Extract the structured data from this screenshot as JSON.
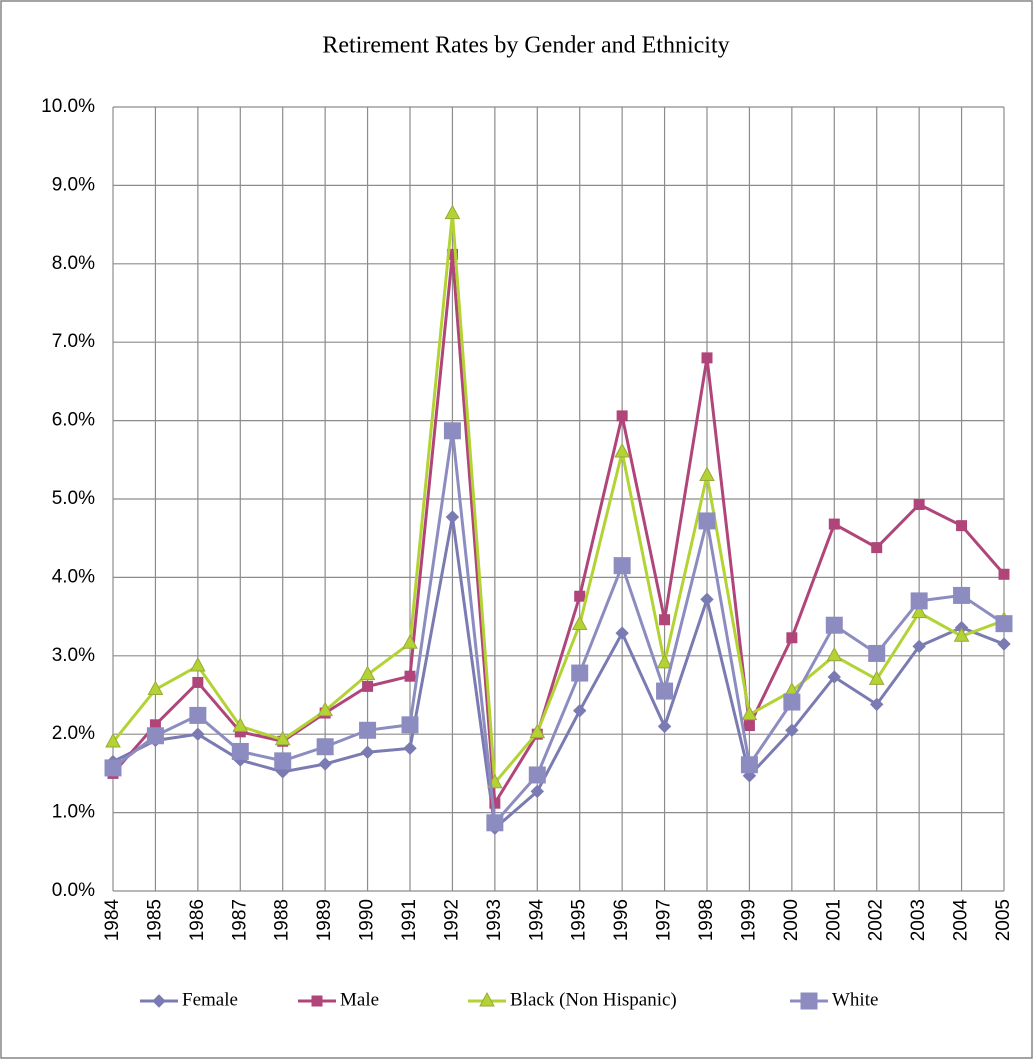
{
  "chart_data": {
    "type": "line",
    "title": "Retirement Rates by Gender and Ethnicity",
    "categories": [
      "1984",
      "1985",
      "1986",
      "1987",
      "1988",
      "1989",
      "1990",
      "1991",
      "1992",
      "1993",
      "1994",
      "1995",
      "1996",
      "1997",
      "1998",
      "1999",
      "2000",
      "2001",
      "2002",
      "2003",
      "2004",
      "2005"
    ],
    "ylim": [
      0,
      10
    ],
    "yticks": [
      {
        "value": 0,
        "label": "0.0%"
      },
      {
        "value": 1,
        "label": "1.0%"
      },
      {
        "value": 2,
        "label": "2.0%"
      },
      {
        "value": 3,
        "label": "3.0%"
      },
      {
        "value": 4,
        "label": "4.0%"
      },
      {
        "value": 5,
        "label": "5.0%"
      },
      {
        "value": 6,
        "label": "6.0%"
      },
      {
        "value": 7,
        "label": "7.0%"
      },
      {
        "value": 8,
        "label": "8.0%"
      },
      {
        "value": 9,
        "label": "9.0%"
      },
      {
        "value": 10,
        "label": "10.0%"
      }
    ],
    "grid": true,
    "legend": "bottom",
    "series": [
      {
        "name": "Female",
        "color": "#7b7bb3",
        "marker": "diamond",
        "values": [
          1.65,
          1.92,
          2.0,
          1.67,
          1.52,
          1.62,
          1.77,
          1.82,
          4.77,
          0.8,
          1.27,
          2.3,
          3.29,
          2.1,
          3.72,
          1.47,
          2.05,
          2.73,
          2.38,
          3.12,
          3.36,
          3.15
        ]
      },
      {
        "name": "Male",
        "color": "#b0457a",
        "marker": "square",
        "values": [
          1.5,
          2.12,
          2.66,
          2.03,
          1.91,
          2.27,
          2.61,
          2.74,
          8.12,
          1.12,
          2.0,
          3.76,
          6.06,
          3.46,
          6.8,
          2.11,
          3.23,
          4.68,
          4.38,
          4.93,
          4.66,
          4.04
        ]
      },
      {
        "name": "Black (Non Hispanic)",
        "color": "#b3d334",
        "marker": "triangle",
        "values": [
          1.9,
          2.57,
          2.87,
          2.1,
          1.93,
          2.3,
          2.76,
          3.16,
          8.64,
          1.38,
          2.02,
          3.4,
          5.6,
          2.91,
          5.3,
          2.25,
          2.55,
          3.0,
          2.7,
          3.55,
          3.25,
          3.45
        ]
      },
      {
        "name": "White",
        "color": "#8c8cc0",
        "marker": "bigsquare",
        "values": [
          1.57,
          1.98,
          2.24,
          1.78,
          1.66,
          1.84,
          2.05,
          2.12,
          5.87,
          0.87,
          1.48,
          2.78,
          4.15,
          2.55,
          4.72,
          1.61,
          2.41,
          3.39,
          3.03,
          3.7,
          3.77,
          3.41
        ]
      }
    ]
  }
}
